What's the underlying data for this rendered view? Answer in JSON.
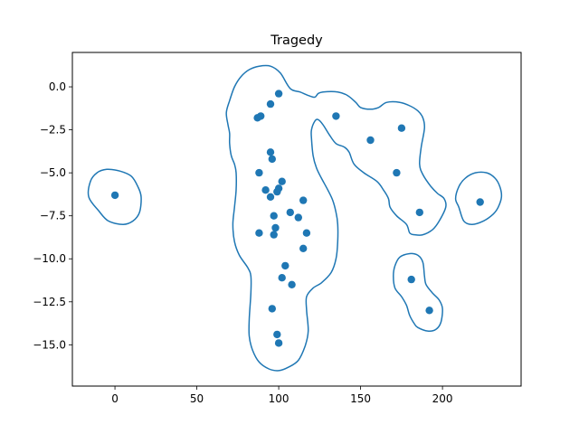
{
  "chart_data": {
    "type": "scatter",
    "title": "Tragedy",
    "xlabel": "",
    "ylabel": "",
    "xlim": [
      -26,
      248
    ],
    "ylim": [
      -17.4,
      2.0
    ],
    "xticks": [
      0,
      50,
      100,
      150,
      200
    ],
    "yticks": [
      0.0,
      -2.5,
      -5.0,
      -7.5,
      -10.0,
      -12.5,
      -15.0
    ],
    "ytick_labels": [
      "0.0",
      "−2.5",
      "−5.0",
      "−7.5",
      "−10.0",
      "−12.5",
      "−15.0"
    ],
    "grid": false,
    "color": "#1f77b4",
    "points": [
      {
        "x": 0,
        "y": -6.3
      },
      {
        "x": 100,
        "y": -0.4
      },
      {
        "x": 95,
        "y": -1.0
      },
      {
        "x": 87,
        "y": -1.8
      },
      {
        "x": 89,
        "y": -1.7
      },
      {
        "x": 135,
        "y": -1.7
      },
      {
        "x": 175,
        "y": -2.4
      },
      {
        "x": 156,
        "y": -3.1
      },
      {
        "x": 95,
        "y": -3.8
      },
      {
        "x": 96,
        "y": -4.2
      },
      {
        "x": 88,
        "y": -5.0
      },
      {
        "x": 172,
        "y": -5.0
      },
      {
        "x": 102,
        "y": -5.5
      },
      {
        "x": 100,
        "y": -5.9
      },
      {
        "x": 99,
        "y": -6.1
      },
      {
        "x": 92,
        "y": -6.0
      },
      {
        "x": 95,
        "y": -6.4
      },
      {
        "x": 115,
        "y": -6.6
      },
      {
        "x": 223,
        "y": -6.7
      },
      {
        "x": 107,
        "y": -7.3
      },
      {
        "x": 186,
        "y": -7.3
      },
      {
        "x": 97,
        "y": -7.5
      },
      {
        "x": 112,
        "y": -7.6
      },
      {
        "x": 98,
        "y": -8.2
      },
      {
        "x": 88,
        "y": -8.5
      },
      {
        "x": 97,
        "y": -8.6
      },
      {
        "x": 117,
        "y": -8.5
      },
      {
        "x": 115,
        "y": -9.4
      },
      {
        "x": 104,
        "y": -10.4
      },
      {
        "x": 102,
        "y": -11.1
      },
      {
        "x": 108,
        "y": -11.5
      },
      {
        "x": 181,
        "y": -11.2
      },
      {
        "x": 96,
        "y": -12.9
      },
      {
        "x": 192,
        "y": -13.0
      },
      {
        "x": 99,
        "y": -14.4
      },
      {
        "x": 100,
        "y": -14.9
      }
    ],
    "contours": [
      {
        "name": "left",
        "points": [
          [
            16,
            -6.4
          ],
          [
            15,
            -7.3
          ],
          [
            11,
            -7.8
          ],
          [
            5,
            -8.0
          ],
          [
            -4,
            -7.8
          ],
          [
            -10,
            -7.2
          ],
          [
            -16,
            -6.4
          ],
          [
            -15,
            -5.5
          ],
          [
            -11,
            -5.0
          ],
          [
            -5,
            -4.8
          ],
          [
            3,
            -4.9
          ],
          [
            10,
            -5.2
          ],
          [
            14,
            -5.8
          ]
        ]
      },
      {
        "name": "main",
        "points": [
          [
            107,
            -0.1
          ],
          [
            113,
            -0.3
          ],
          [
            118,
            -0.5
          ],
          [
            122,
            -0.6
          ],
          [
            124,
            -0.4
          ],
          [
            127,
            -0.3
          ],
          [
            136,
            -0.3
          ],
          [
            142,
            -0.5
          ],
          [
            147,
            -0.9
          ],
          [
            150,
            -1.2
          ],
          [
            156,
            -1.3
          ],
          [
            161,
            -1.2
          ],
          [
            166,
            -0.9
          ],
          [
            174,
            -0.9
          ],
          [
            180,
            -1.1
          ],
          [
            185,
            -1.4
          ],
          [
            188,
            -1.8
          ],
          [
            189,
            -2.4
          ],
          [
            187,
            -3.5
          ],
          [
            186,
            -4.5
          ],
          [
            188,
            -5.1
          ],
          [
            193,
            -5.8
          ],
          [
            197,
            -6.2
          ],
          [
            201,
            -6.5
          ],
          [
            202,
            -7.0
          ],
          [
            198,
            -7.8
          ],
          [
            194,
            -8.3
          ],
          [
            188,
            -8.6
          ],
          [
            183,
            -8.6
          ],
          [
            180,
            -8.5
          ],
          [
            178,
            -8.0
          ],
          [
            172,
            -7.5
          ],
          [
            168,
            -7.0
          ],
          [
            167,
            -6.5
          ],
          [
            164,
            -6.0
          ],
          [
            160,
            -5.5
          ],
          [
            152,
            -5.0
          ],
          [
            146,
            -4.5
          ],
          [
            143,
            -3.8
          ],
          [
            140,
            -3.5
          ],
          [
            135,
            -3.3
          ],
          [
            131,
            -2.8
          ],
          [
            127,
            -2.2
          ],
          [
            124,
            -1.9
          ],
          [
            122,
            -2.0
          ],
          [
            120,
            -2.5
          ],
          [
            120,
            -3.0
          ],
          [
            121,
            -4.0
          ],
          [
            123,
            -4.7
          ],
          [
            126,
            -5.3
          ],
          [
            130,
            -6.0
          ],
          [
            133,
            -6.6
          ],
          [
            135,
            -7.3
          ],
          [
            136,
            -8.0
          ],
          [
            136,
            -9.0
          ],
          [
            135,
            -10.0
          ],
          [
            132,
            -10.8
          ],
          [
            126,
            -11.4
          ],
          [
            121,
            -11.7
          ],
          [
            117,
            -12.2
          ],
          [
            117,
            -13.0
          ],
          [
            118,
            -14.2
          ],
          [
            116,
            -15.1
          ],
          [
            112,
            -15.9
          ],
          [
            106,
            -16.3
          ],
          [
            100,
            -16.5
          ],
          [
            94,
            -16.4
          ],
          [
            88,
            -16.0
          ],
          [
            84,
            -15.3
          ],
          [
            82,
            -14.5
          ],
          [
            82,
            -13.5
          ],
          [
            83,
            -12.0
          ],
          [
            83,
            -11.0
          ],
          [
            81,
            -10.5
          ],
          [
            76,
            -9.8
          ],
          [
            73,
            -9.0
          ],
          [
            72,
            -8.0
          ],
          [
            73,
            -7.0
          ],
          [
            74,
            -6.0
          ],
          [
            74,
            -5.0
          ],
          [
            73,
            -4.5
          ],
          [
            71,
            -4.0
          ],
          [
            70,
            -3.3
          ],
          [
            70,
            -2.7
          ],
          [
            69,
            -2.2
          ],
          [
            68,
            -1.5
          ],
          [
            70,
            -0.8
          ],
          [
            73,
            0.0
          ],
          [
            77,
            0.6
          ],
          [
            82,
            1.0
          ],
          [
            88,
            1.2
          ],
          [
            95,
            1.2
          ],
          [
            101,
            0.8
          ]
        ]
      },
      {
        "name": "right",
        "points": [
          [
            236,
            -6.4
          ],
          [
            234,
            -7.0
          ],
          [
            231,
            -7.4
          ],
          [
            225,
            -7.8
          ],
          [
            218,
            -8.0
          ],
          [
            213,
            -7.8
          ],
          [
            210,
            -7.0
          ],
          [
            208,
            -6.5
          ],
          [
            210,
            -5.8
          ],
          [
            214,
            -5.3
          ],
          [
            220,
            -5.0
          ],
          [
            227,
            -5.0
          ],
          [
            232,
            -5.3
          ],
          [
            235,
            -5.8
          ]
        ]
      },
      {
        "name": "bottom-right",
        "points": [
          [
            200,
            -12.9
          ],
          [
            199,
            -13.7
          ],
          [
            196,
            -14.1
          ],
          [
            191,
            -14.2
          ],
          [
            185,
            -14.0
          ],
          [
            183,
            -13.8
          ],
          [
            180,
            -13.3
          ],
          [
            178,
            -12.7
          ],
          [
            175,
            -12.2
          ],
          [
            171,
            -11.7
          ],
          [
            170,
            -11.0
          ],
          [
            171,
            -10.4
          ],
          [
            174,
            -9.9
          ],
          [
            180,
            -9.7
          ],
          [
            185,
            -9.8
          ],
          [
            188,
            -10.2
          ],
          [
            189,
            -11.0
          ],
          [
            190,
            -11.5
          ],
          [
            194,
            -12.0
          ],
          [
            198,
            -12.4
          ]
        ]
      }
    ]
  }
}
